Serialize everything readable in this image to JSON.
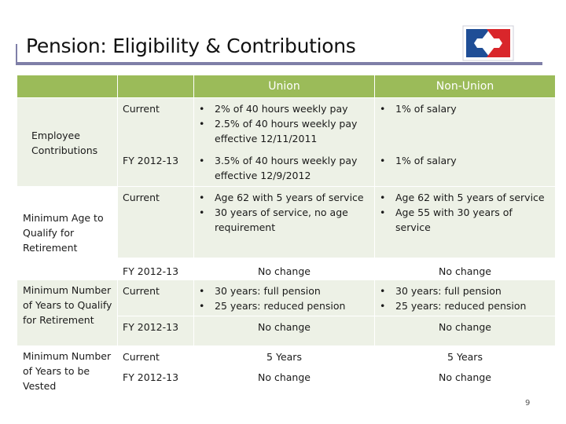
{
  "slide": {
    "title": "Pension: Eligibility & Contributions",
    "page_number": "9"
  },
  "header": {
    "blank1": "",
    "blank2": "",
    "union": "Union",
    "non_union": "Non-Union"
  },
  "rows": {
    "employee_contributions": {
      "label": "Employee Contributions",
      "current": {
        "period": "Current",
        "union": [
          "2% of 40 hours weekly pay",
          "2.5% of 40 hours weekly pay effective 12/11/2011"
        ],
        "non_union": [
          "1% of salary"
        ]
      },
      "fy": {
        "period": "FY 2012-13",
        "union": [
          "3.5% of 40 hours weekly pay effective 12/9/2012"
        ],
        "non_union": [
          "1% of salary"
        ]
      }
    },
    "minimum_age": {
      "label": "Minimum Age to Qualify for Retirement",
      "current": {
        "period": "Current",
        "union": [
          "Age 62 with 5 years of service",
          "30 years of service, no age requirement"
        ],
        "non_union": [
          "Age 62 with 5 years of service",
          "Age 55 with 30 years of service"
        ]
      },
      "fy": {
        "period": "FY 2012-13",
        "union": "No change",
        "non_union": "No change"
      }
    },
    "minimum_years_retire": {
      "label": "Minimum Number of Years to Qualify for Retirement",
      "current": {
        "period": "Current",
        "union": [
          "30 years:  full pension",
          "25 years:  reduced pension"
        ],
        "non_union": [
          "30 years:  full pension",
          "25 years:  reduced pension"
        ]
      },
      "fy": {
        "period": "FY 2012-13",
        "union": "No change",
        "non_union": "No change"
      }
    },
    "minimum_years_vested": {
      "label": "Minimum Number of Years to be Vested",
      "current": {
        "period": "Current",
        "union": "5 Years",
        "non_union": "5 Years"
      },
      "fy": {
        "period": "FY 2012-13",
        "union": "No change",
        "non_union": "No change"
      }
    }
  },
  "colors": {
    "header_green": "#9bbb59",
    "shade": "#edf1e6",
    "rule": "#7f7fa8",
    "logo_blue": "#1f4e96",
    "logo_red": "#d9262b"
  }
}
